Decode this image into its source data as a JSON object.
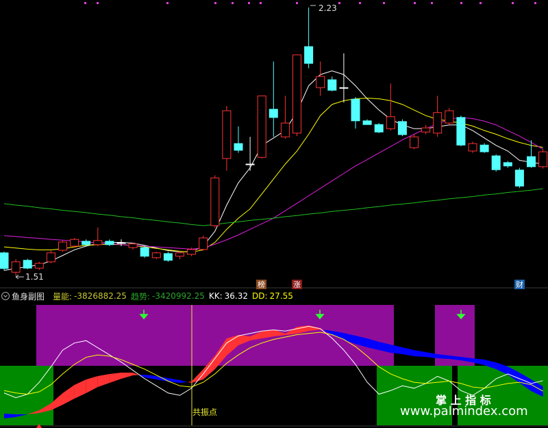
{
  "chart_data": [
    {
      "type": "candlestick",
      "ylim": [
        1.48,
        2.25
      ],
      "open": [
        1.572,
        1.52,
        1.552,
        1.531,
        1.548,
        1.579,
        1.59,
        1.603,
        1.594,
        1.603,
        1.599,
        1.586,
        1.586,
        1.559,
        1.57,
        1.563,
        1.568,
        1.581,
        1.645,
        1.825,
        1.865,
        1.81,
        1.828,
        1.957,
        1.883,
        1.893,
        2.125,
        2.015,
        2.036,
        2.015,
        1.984,
        1.926,
        1.916,
        1.905,
        1.924,
        1.854,
        1.896,
        1.893,
        1.92,
        1.935,
        1.845,
        1.861,
        1.832,
        1.814,
        1.794,
        1.83,
        1.803
      ],
      "high": [
        1.575,
        1.555,
        1.556,
        1.548,
        1.578,
        1.605,
        1.612,
        1.608,
        1.64,
        1.608,
        1.608,
        1.599,
        1.59,
        1.575,
        1.575,
        1.578,
        1.586,
        1.618,
        1.78,
        1.966,
        1.911,
        1.883,
        1.993,
        2.085,
        1.993,
        2.103,
        2.23,
        2.085,
        2.045,
        2.107,
        1.99,
        1.93,
        1.92,
        2.026,
        1.93,
        1.89,
        1.915,
        1.993,
        1.96,
        1.94,
        1.87,
        1.866,
        1.836,
        1.818,
        1.8,
        1.874,
        1.85
      ],
      "low": [
        1.525,
        1.51,
        1.528,
        1.526,
        1.544,
        1.575,
        1.586,
        1.59,
        1.59,
        1.59,
        1.59,
        1.581,
        1.559,
        1.555,
        1.548,
        1.555,
        1.563,
        1.578,
        1.64,
        1.792,
        1.84,
        1.792,
        1.825,
        1.883,
        1.878,
        1.885,
        2.067,
        1.993,
        2.005,
        1.975,
        1.905,
        1.916,
        1.893,
        1.9,
        1.885,
        1.85,
        1.89,
        1.883,
        1.915,
        1.858,
        1.84,
        1.84,
        1.79,
        1.8,
        1.746,
        1.8,
        1.798
      ],
      "close": [
        1.53,
        1.548,
        1.531,
        1.544,
        1.572,
        1.601,
        1.608,
        1.594,
        1.605,
        1.594,
        1.599,
        1.596,
        1.563,
        1.572,
        1.552,
        1.572,
        1.581,
        1.612,
        1.773,
        1.953,
        1.847,
        1.81,
        1.993,
        1.935,
        1.92,
        2.103,
        2.08,
        2.045,
        2.008,
        2.015,
        1.926,
        1.916,
        1.896,
        1.937,
        1.889,
        1.883,
        1.907,
        1.948,
        1.953,
        1.861,
        1.865,
        1.843,
        1.795,
        1.805,
        1.751,
        1.803,
        1.843
      ],
      "up_color": "#ff3232",
      "down_color": "#54ffff",
      "flat_color": "#ffffff",
      "series": [
        {
          "color": "#ffffff",
          "values": [
            1.525,
            1.53,
            1.535,
            1.54,
            1.55,
            1.565,
            1.58,
            1.59,
            1.597,
            1.6,
            1.6,
            1.598,
            1.592,
            1.585,
            1.578,
            1.575,
            1.575,
            1.59,
            1.63,
            1.7,
            1.76,
            1.8,
            1.86,
            1.88,
            1.9,
            1.95,
            2.02,
            2.05,
            2.06,
            2.05,
            2.02,
            1.985,
            1.955,
            1.93,
            1.915,
            1.905,
            1.905,
            1.91,
            1.915,
            1.915,
            1.9,
            1.88,
            1.86,
            1.845,
            1.82,
            1.815,
            1.81
          ]
        },
        {
          "color": "#ffff00",
          "values": [
            1.588,
            1.585,
            1.582,
            1.58,
            1.58,
            1.583,
            1.588,
            1.592,
            1.594,
            1.595,
            1.594,
            1.592,
            1.588,
            1.584,
            1.58,
            1.576,
            1.574,
            1.58,
            1.6,
            1.635,
            1.665,
            1.69,
            1.73,
            1.77,
            1.81,
            1.845,
            1.89,
            1.94,
            1.97,
            1.98,
            1.985,
            1.987,
            1.985,
            1.98,
            1.97,
            1.955,
            1.94,
            1.93,
            1.925,
            1.92,
            1.912,
            1.9,
            1.89,
            1.878,
            1.868,
            1.86,
            1.855
          ]
        },
        {
          "color": "#e020e0",
          "values": [
            1.618,
            1.616,
            1.613,
            1.611,
            1.608,
            1.606,
            1.604,
            1.601,
            1.599,
            1.597,
            1.594,
            1.592,
            1.59,
            1.588,
            1.586,
            1.584,
            1.582,
            1.585,
            1.595,
            1.607,
            1.62,
            1.635,
            1.65,
            1.665,
            1.685,
            1.705,
            1.725,
            1.745,
            1.765,
            1.785,
            1.805,
            1.822,
            1.84,
            1.857,
            1.875,
            1.89,
            1.905,
            1.918,
            1.93,
            1.935,
            1.932,
            1.925,
            1.915,
            1.9,
            1.885,
            1.868,
            1.85
          ]
        },
        {
          "color": "#20c020",
          "values": [
            1.704,
            1.7,
            1.697,
            1.693,
            1.69,
            1.686,
            1.683,
            1.68,
            1.676,
            1.673,
            1.669,
            1.666,
            1.662,
            1.659,
            1.655,
            1.652,
            1.648,
            1.645,
            1.648,
            1.652,
            1.655,
            1.659,
            1.662,
            1.665,
            1.669,
            1.672,
            1.676,
            1.679,
            1.683,
            1.686,
            1.689,
            1.693,
            1.696,
            1.7,
            1.703,
            1.706,
            1.71,
            1.713,
            1.717,
            1.72,
            1.723,
            1.727,
            1.73,
            1.734,
            1.737,
            1.74,
            1.744
          ]
        }
      ],
      "high_label": 2.23,
      "low_label": 1.51,
      "badges": [
        "榜",
        "涨",
        "财"
      ]
    },
    {
      "type": "ribbon",
      "title": "鱼身副图",
      "ylim": [
        0,
        100
      ],
      "y2lim": [
        -4900000,
        -200000
      ],
      "up_color": "#ff3333",
      "down_color": "#0000ff",
      "series": [
        {
          "name": "量能",
          "color": "#c8c832",
          "axis": "y2",
          "values": [
            -4684000,
            -4630000,
            -4522000,
            -4360000,
            -4090000,
            -3685000,
            -3360000,
            -3144000,
            -3009000,
            -2928000,
            -2874000,
            -2874000,
            -3063000,
            -3144000,
            -3225000,
            -3279000,
            -3225000,
            -2739000,
            -2199000,
            -1524000,
            -1389000,
            -1443000,
            -1254000,
            -1172000,
            -1335000,
            -1064000,
            -1010000,
            -1118000,
            -1389000,
            -1578000,
            -1740000,
            -1875000,
            -1983000,
            -2091000,
            -2145000,
            -2226000,
            -2253000,
            -2307000,
            -2334000,
            -2388000,
            -2469000,
            -2577000,
            -2739000,
            -2955000,
            -3279000,
            -3603000,
            -3826882.25
          ]
        },
        {
          "name": "趋势",
          "color": "#2aa52a",
          "axis": "y2",
          "values": [
            -4495000,
            -4522000,
            -4522000,
            -4468000,
            -4360000,
            -4144000,
            -3901000,
            -3685000,
            -3441000,
            -3279000,
            -3117000,
            -2982000,
            -2955000,
            -3009000,
            -3090000,
            -3171000,
            -3279000,
            -3144000,
            -2739000,
            -2199000,
            -1794000,
            -1605000,
            -1524000,
            -1443000,
            -1389000,
            -1335000,
            -1227000,
            -1172000,
            -1227000,
            -1308000,
            -1416000,
            -1524000,
            -1659000,
            -1767000,
            -1875000,
            -1983000,
            -2064000,
            -2145000,
            -2199000,
            -2253000,
            -2307000,
            -2361000,
            -2469000,
            -2631000,
            -2874000,
            -3144000,
            -3420992.25
          ]
        },
        {
          "name": "KK",
          "color": "#ffffff",
          "values": [
            26,
            22,
            25,
            35,
            48,
            62,
            68,
            70,
            64,
            58,
            52,
            45,
            38,
            32,
            26,
            24,
            30,
            42,
            55,
            68,
            74,
            76,
            78,
            79,
            78,
            80,
            82,
            80,
            72,
            62,
            50,
            35,
            25,
            28,
            32,
            30,
            34,
            40,
            36,
            28,
            24,
            30,
            38,
            42,
            38,
            34,
            36.32
          ]
        },
        {
          "name": "DD",
          "color": "#ffff00",
          "values": [
            28,
            26,
            25,
            27,
            33,
            42,
            50,
            56,
            58,
            57,
            54,
            50,
            46,
            41,
            36,
            32,
            31,
            35,
            42,
            51,
            58,
            64,
            68,
            71,
            73,
            75,
            76,
            77,
            75,
            71,
            65,
            57,
            48,
            42,
            38,
            35,
            34,
            35,
            36,
            34,
            31,
            30,
            32,
            34,
            35,
            33,
            27.55
          ]
        }
      ],
      "annotation": "共振点",
      "watermark": [
        "掌 上 指 标",
        "www.palmindex.com"
      ]
    }
  ]
}
